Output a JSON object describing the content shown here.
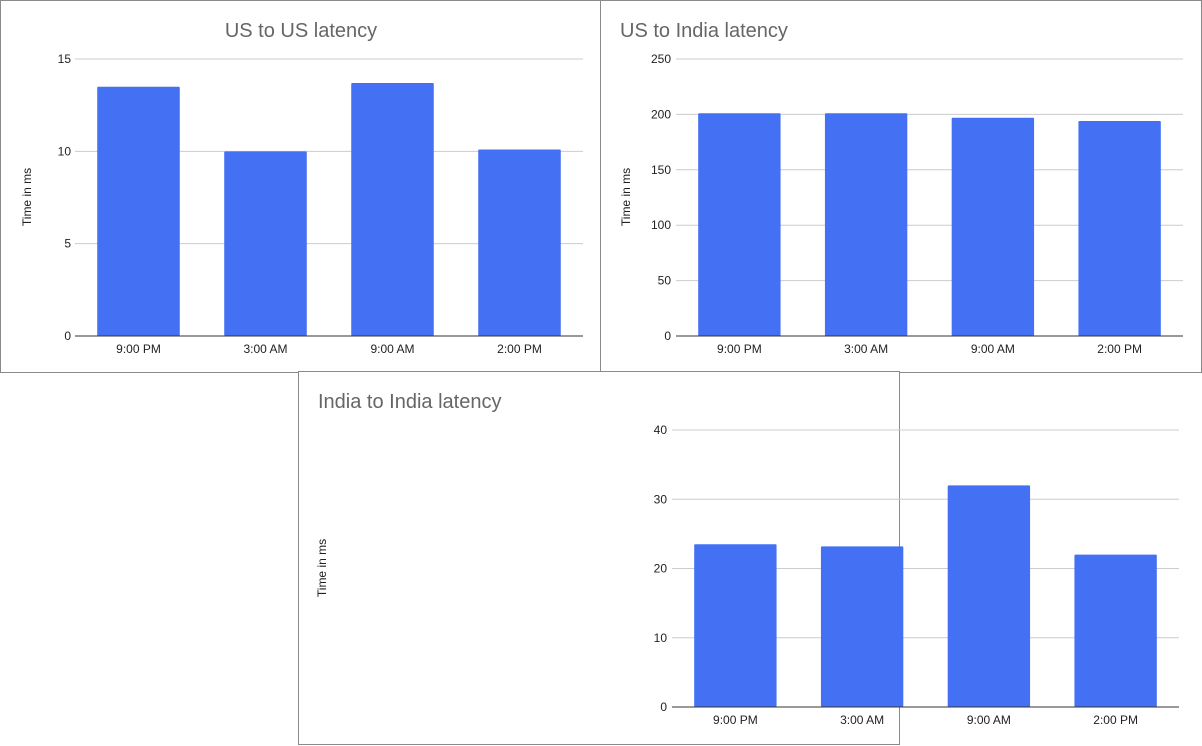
{
  "bar_color": "#4470f4",
  "chart_data": [
    {
      "type": "bar",
      "title": "US to US latency",
      "xlabel": "",
      "ylabel": "Time in ms",
      "categories": [
        "9:00 PM",
        "3:00 AM",
        "9:00 AM",
        "2:00 PM"
      ],
      "values": [
        13.5,
        10.0,
        13.7,
        10.1
      ],
      "ylim": [
        0,
        15
      ],
      "yticks": [
        0,
        5,
        10,
        15
      ],
      "grid": true,
      "legend": "none"
    },
    {
      "type": "bar",
      "title": "US to India latency",
      "xlabel": "",
      "ylabel": "Time in ms",
      "categories": [
        "9:00 PM",
        "3:00 AM",
        "9:00 AM",
        "2:00 PM"
      ],
      "values": [
        201,
        201,
        197,
        194
      ],
      "ylim": [
        0,
        250
      ],
      "yticks": [
        0,
        50,
        100,
        150,
        200,
        250
      ],
      "grid": true,
      "legend": "none"
    },
    {
      "type": "bar",
      "title": "India to India latency",
      "xlabel": "",
      "ylabel": "Time in ms",
      "categories": [
        "9:00 PM",
        "3:00 AM",
        "9:00 AM",
        "2:00 PM"
      ],
      "values": [
        23.5,
        23.2,
        32.0,
        22.0
      ],
      "ylim": [
        0,
        40
      ],
      "yticks": [
        0,
        10,
        20,
        30,
        40
      ],
      "grid": true,
      "legend": "none"
    }
  ]
}
